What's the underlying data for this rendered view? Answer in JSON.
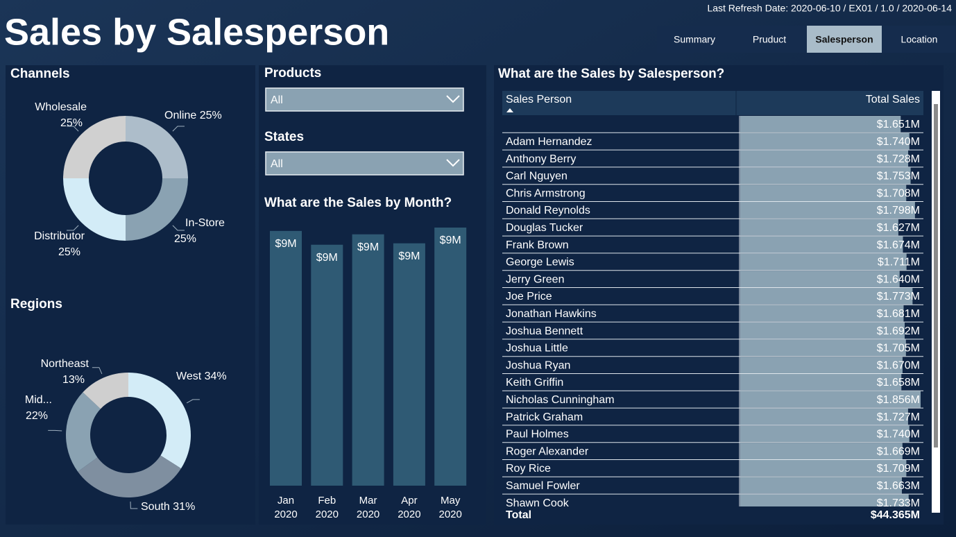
{
  "header": {
    "title": "Sales by Salesperson",
    "refresh": "Last Refresh Date: 2020-06-10 / EX01 / 1.0 / 2020-06-14"
  },
  "nav": {
    "tabs": [
      "Summary",
      "Pruduct",
      "Salesperson",
      "Location"
    ],
    "active": 2
  },
  "filters": [
    {
      "label": "Products",
      "value": "All"
    },
    {
      "label": "States",
      "value": "All"
    }
  ],
  "chart_data": [
    {
      "type": "donut",
      "title": "Channels",
      "categories": [
        "Online",
        "In-Store",
        "Distributor",
        "Wholesale"
      ],
      "values": [
        25,
        25,
        25,
        25
      ],
      "value_labels": [
        "25%",
        "25%",
        "25%",
        "25%"
      ],
      "colors": [
        "#adbdca",
        "#8aa2b2",
        "#d3ecf7",
        "#d0d0d0"
      ]
    },
    {
      "type": "donut",
      "title": "Regions",
      "categories": [
        "West",
        "South",
        "Mid...",
        "Northeast"
      ],
      "values": [
        34,
        31,
        22,
        13
      ],
      "value_labels": [
        "34%",
        "31%",
        "22%",
        "13%"
      ],
      "colors": [
        "#d3ecf7",
        "#7f8fa0",
        "#8aa2b2",
        "#cfcfcf"
      ]
    },
    {
      "type": "bar",
      "title": "What are the Sales by Month?",
      "categories": [
        "Jan 2020",
        "Feb 2020",
        "Mar 2020",
        "Apr 2020",
        "May 2020"
      ],
      "values": [
        9.06,
        8.57,
        8.94,
        8.62,
        9.18
      ],
      "value_labels": [
        "$9M",
        "$9M",
        "$9M",
        "$9M",
        "$9M"
      ],
      "color": "#2f5a74"
    }
  ],
  "table": {
    "title": "What are the Sales by Salesperson?",
    "columns": [
      "Sales Person",
      "Total Sales"
    ],
    "bar_color": "#8aa2b2",
    "rows": [
      {
        "name": null,
        "value": 1.651,
        "label": "$1.651M"
      },
      {
        "name": "Adam Hernandez",
        "value": 1.74,
        "label": "$1.740M"
      },
      {
        "name": "Anthony Berry",
        "value": 1.728,
        "label": "$1.728M"
      },
      {
        "name": "Carl Nguyen",
        "value": 1.753,
        "label": "$1.753M"
      },
      {
        "name": "Chris Armstrong",
        "value": 1.708,
        "label": "$1.708M"
      },
      {
        "name": "Donald Reynolds",
        "value": 1.798,
        "label": "$1.798M"
      },
      {
        "name": "Douglas Tucker",
        "value": 1.627,
        "label": "$1.627M"
      },
      {
        "name": "Frank Brown",
        "value": 1.674,
        "label": "$1.674M"
      },
      {
        "name": "George Lewis",
        "value": 1.711,
        "label": "$1.711M"
      },
      {
        "name": "Jerry Green",
        "value": 1.64,
        "label": "$1.640M"
      },
      {
        "name": "Joe Price",
        "value": 1.773,
        "label": "$1.773M"
      },
      {
        "name": "Jonathan Hawkins",
        "value": 1.681,
        "label": "$1.681M"
      },
      {
        "name": "Joshua Bennett",
        "value": 1.692,
        "label": "$1.692M"
      },
      {
        "name": "Joshua Little",
        "value": 1.705,
        "label": "$1.705M"
      },
      {
        "name": "Joshua Ryan",
        "value": 1.67,
        "label": "$1.670M"
      },
      {
        "name": "Keith Griffin",
        "value": 1.658,
        "label": "$1.658M"
      },
      {
        "name": "Nicholas Cunningham",
        "value": 1.856,
        "label": "$1.856M"
      },
      {
        "name": "Patrick Graham",
        "value": 1.727,
        "label": "$1.727M"
      },
      {
        "name": "Paul Holmes",
        "value": 1.74,
        "label": "$1.740M"
      },
      {
        "name": "Roger Alexander",
        "value": 1.669,
        "label": "$1.669M"
      },
      {
        "name": "Roy Rice",
        "value": 1.709,
        "label": "$1.709M"
      },
      {
        "name": "Samuel Fowler",
        "value": 1.663,
        "label": "$1.663M"
      },
      {
        "name": "Shawn Cook",
        "value": 1.733,
        "label": "$1.733M"
      }
    ],
    "total": {
      "label": "Total",
      "value_label": "$44.365M"
    }
  }
}
